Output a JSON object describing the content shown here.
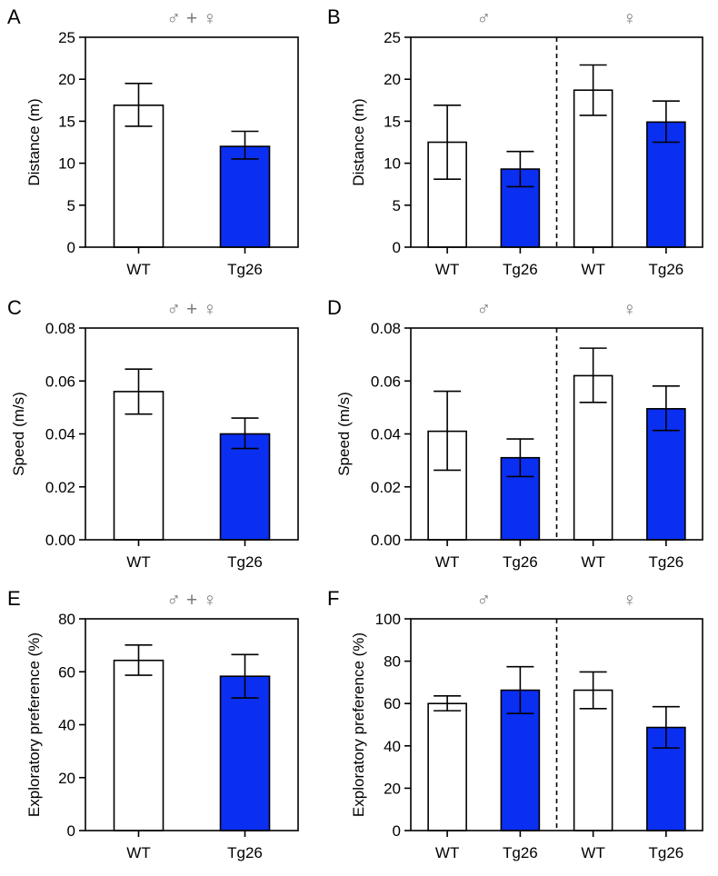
{
  "colors": {
    "wt_fill": "#ffffff",
    "tg26_fill": "#0a2ff0",
    "axis": "#000000",
    "sex_label": "#7a7a7a"
  },
  "chart_data": [
    {
      "panel": "A",
      "type": "bar",
      "header": "♂ + ♀",
      "ylabel": "Distance (m)",
      "ylim": [
        0,
        25
      ],
      "yticks": [
        "0",
        "5",
        "10",
        "15",
        "20",
        "25"
      ],
      "categories": [
        "WT",
        "Tg26"
      ],
      "series": [
        {
          "name": "Distance",
          "values": [
            16.9,
            12.0
          ],
          "err_low": [
            14.4,
            10.5
          ],
          "err_high": [
            19.5,
            13.8
          ]
        }
      ],
      "fills": [
        "wt",
        "tg26"
      ]
    },
    {
      "panel": "B",
      "type": "bar",
      "groups": [
        "♂",
        "♀"
      ],
      "ylabel": "Distance (m)",
      "ylim": [
        0,
        25
      ],
      "yticks": [
        "0",
        "5",
        "10",
        "15",
        "20",
        "25"
      ],
      "categories": [
        "WT",
        "Tg26",
        "WT",
        "Tg26"
      ],
      "series": [
        {
          "name": "Distance",
          "values": [
            12.5,
            9.3,
            18.7,
            14.9
          ],
          "err_low": [
            8.1,
            7.2,
            15.7,
            12.5
          ],
          "err_high": [
            16.9,
            11.4,
            21.7,
            17.4
          ]
        }
      ],
      "fills": [
        "wt",
        "tg26",
        "wt",
        "tg26"
      ]
    },
    {
      "panel": "C",
      "type": "bar",
      "header": "♂ + ♀",
      "ylabel": "Speed (m/s)",
      "ylim": [
        0,
        0.08
      ],
      "yticks": [
        "0.00",
        "0.02",
        "0.04",
        "0.06",
        "0.08"
      ],
      "categories": [
        "WT",
        "Tg26"
      ],
      "series": [
        {
          "name": "Speed",
          "values": [
            0.056,
            0.04
          ],
          "err_low": [
            0.0475,
            0.0345
          ],
          "err_high": [
            0.0645,
            0.046
          ]
        }
      ],
      "fills": [
        "wt",
        "tg26"
      ]
    },
    {
      "panel": "D",
      "type": "bar",
      "groups": [
        "♂",
        "♀"
      ],
      "ylabel": "Speed (m/s)",
      "ylim": [
        0,
        0.08
      ],
      "yticks": [
        "0.00",
        "0.02",
        "0.04",
        "0.06",
        "0.08"
      ],
      "categories": [
        "WT",
        "Tg26",
        "WT",
        "Tg26"
      ],
      "series": [
        {
          "name": "Speed",
          "values": [
            0.041,
            0.031,
            0.062,
            0.0495
          ],
          "err_low": [
            0.0263,
            0.0239,
            0.0519,
            0.0413
          ],
          "err_high": [
            0.0561,
            0.0381,
            0.0724,
            0.0581
          ]
        }
      ],
      "fills": [
        "wt",
        "tg26",
        "wt",
        "tg26"
      ]
    },
    {
      "panel": "E",
      "type": "bar",
      "header": "♂ + ♀",
      "ylabel": "Exploratory preference (%)",
      "ylim": [
        0,
        80
      ],
      "yticks": [
        "0",
        "20",
        "40",
        "60",
        "80"
      ],
      "categories": [
        "WT",
        "Tg26"
      ],
      "series": [
        {
          "name": "Exploratory preference",
          "values": [
            64.3,
            58.3
          ],
          "err_low": [
            58.7,
            50.1
          ],
          "err_high": [
            70.1,
            66.5
          ]
        }
      ],
      "fills": [
        "wt",
        "tg26"
      ]
    },
    {
      "panel": "F",
      "type": "bar",
      "groups": [
        "♂",
        "♀"
      ],
      "ylabel": "Exploratory preference (%)",
      "ylim": [
        0,
        100
      ],
      "yticks": [
        "0",
        "20",
        "40",
        "60",
        "80",
        "100"
      ],
      "categories": [
        "WT",
        "Tg26",
        "WT",
        "Tg26"
      ],
      "series": [
        {
          "name": "Exploratory preference",
          "values": [
            60.0,
            66.3,
            66.3,
            48.7
          ],
          "err_low": [
            56.6,
            55.3,
            57.6,
            39.0
          ],
          "err_high": [
            63.6,
            77.4,
            74.9,
            58.5
          ]
        }
      ],
      "fills": [
        "wt",
        "tg26",
        "wt",
        "tg26"
      ]
    }
  ]
}
